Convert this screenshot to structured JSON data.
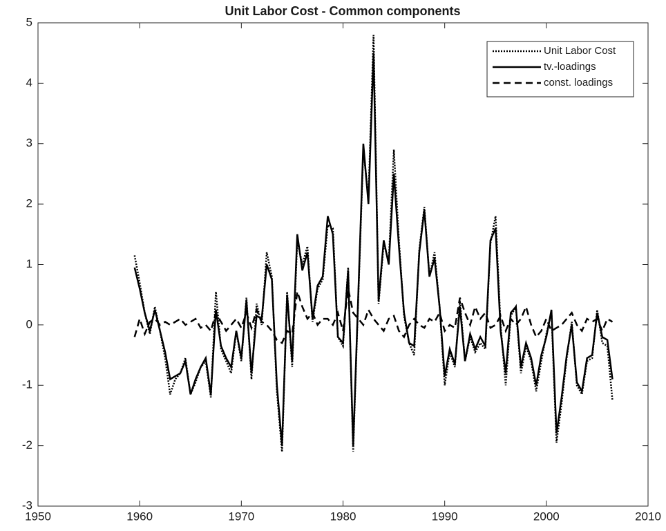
{
  "chart_data": {
    "type": "line",
    "title": "Unit Labor Cost - Common components",
    "x": [
      1959.5,
      1960,
      1960.5,
      1961,
      1961.5,
      1962,
      1962.5,
      1963,
      1963.5,
      1964,
      1964.5,
      1965,
      1965.5,
      1966,
      1966.5,
      1967,
      1967.5,
      1968,
      1968.5,
      1969,
      1969.5,
      1970,
      1970.5,
      1971,
      1971.5,
      1972,
      1972.5,
      1973,
      1973.5,
      1974,
      1974.5,
      1975,
      1975.5,
      1976,
      1976.5,
      1977,
      1977.5,
      1978,
      1978.5,
      1979,
      1979.5,
      1980,
      1980.5,
      1981,
      1981.5,
      1982,
      1982.5,
      1983,
      1983.5,
      1984,
      1984.5,
      1985,
      1985.5,
      1986,
      1986.5,
      1987,
      1987.5,
      1988,
      1988.5,
      1989,
      1989.5,
      1990,
      1990.5,
      1991,
      1991.5,
      1992,
      1992.5,
      1993,
      1993.5,
      1994,
      1994.5,
      1995,
      1995.5,
      1996,
      1996.5,
      1997,
      1997.5,
      1998,
      1998.5,
      1999,
      1999.5,
      2000,
      2000.5,
      2001,
      2001.5,
      2002,
      2002.5,
      2003,
      2003.5,
      2004,
      2004.5,
      2005,
      2005.5,
      2006,
      2006.5
    ],
    "series": [
      {
        "name": "Unit Labor Cost",
        "color": "#000000",
        "style": "dotted",
        "values": [
          1.15,
          0.7,
          0.2,
          -0.15,
          0.3,
          -0.1,
          -0.55,
          -1.15,
          -0.9,
          -0.8,
          -0.55,
          -1.15,
          -0.95,
          -0.7,
          -0.6,
          -1.2,
          0.55,
          -0.4,
          -0.6,
          -0.8,
          -0.1,
          -0.6,
          0.45,
          -0.9,
          0.35,
          0.0,
          1.2,
          0.8,
          -1.1,
          -2.1,
          0.55,
          -0.7,
          1.4,
          1.0,
          1.3,
          0.05,
          0.6,
          0.75,
          1.65,
          1.6,
          -0.2,
          -0.35,
          0.95,
          -2.1,
          0.45,
          2.9,
          2.1,
          4.8,
          0.35,
          1.35,
          1.05,
          2.9,
          1.4,
          0.15,
          -0.3,
          -0.5,
          1.25,
          1.95,
          0.8,
          1.2,
          0.3,
          -1.0,
          -0.45,
          -0.7,
          0.4,
          -0.6,
          -0.2,
          -0.45,
          -0.3,
          -0.4,
          1.35,
          1.8,
          0.0,
          -1.0,
          0.15,
          0.3,
          -0.8,
          -0.35,
          -0.6,
          -1.1,
          -0.6,
          -0.15,
          0.2,
          -1.95,
          -1.3,
          -0.55,
          0.05,
          -1.0,
          -1.15,
          -0.6,
          -0.55,
          0.25,
          -0.3,
          -0.35,
          -1.25
        ]
      },
      {
        "name": "tv.-loadings",
        "color": "#000000",
        "style": "solid",
        "values": [
          0.95,
          0.6,
          0.2,
          -0.1,
          0.25,
          -0.1,
          -0.45,
          -0.9,
          -0.85,
          -0.8,
          -0.6,
          -1.15,
          -0.9,
          -0.7,
          -0.55,
          -1.15,
          0.25,
          -0.35,
          -0.55,
          -0.7,
          -0.1,
          -0.55,
          0.4,
          -0.8,
          0.15,
          0.1,
          1.0,
          0.75,
          -1.0,
          -2.0,
          0.5,
          -0.6,
          1.5,
          0.9,
          1.2,
          0.1,
          0.65,
          0.8,
          1.8,
          1.5,
          -0.2,
          -0.3,
          0.9,
          -2.0,
          0.5,
          3.0,
          2.0,
          4.5,
          0.4,
          1.4,
          1.0,
          2.5,
          1.3,
          0.2,
          -0.3,
          -0.35,
          1.2,
          1.9,
          0.8,
          1.1,
          0.3,
          -0.85,
          -0.4,
          -0.65,
          0.3,
          -0.6,
          -0.15,
          -0.4,
          -0.2,
          -0.35,
          1.4,
          1.6,
          -0.1,
          -0.8,
          0.2,
          0.3,
          -0.7,
          -0.3,
          -0.55,
          -1.0,
          -0.5,
          -0.2,
          0.25,
          -1.8,
          -1.2,
          -0.5,
          0.0,
          -0.95,
          -1.1,
          -0.55,
          -0.5,
          0.2,
          -0.2,
          -0.25,
          -0.9
        ]
      },
      {
        "name": "const. loadings",
        "color": "#000000",
        "style": "dashed",
        "values": [
          -0.2,
          0.1,
          -0.15,
          0.05,
          0.1,
          0.0,
          0.05,
          0.0,
          0.05,
          0.1,
          0.0,
          0.05,
          0.1,
          -0.05,
          0.0,
          -0.1,
          0.2,
          0.05,
          -0.1,
          0.0,
          0.1,
          -0.05,
          0.2,
          -0.05,
          0.25,
          0.05,
          0.0,
          -0.1,
          -0.25,
          -0.3,
          -0.1,
          -0.15,
          0.55,
          0.3,
          0.1,
          0.2,
          0.0,
          0.1,
          0.1,
          0.0,
          0.2,
          -0.1,
          0.6,
          0.2,
          0.1,
          0.0,
          0.25,
          0.1,
          0.0,
          -0.1,
          0.1,
          0.15,
          -0.1,
          -0.2,
          0.0,
          0.1,
          0.0,
          -0.05,
          0.1,
          0.05,
          0.2,
          -0.1,
          0.0,
          -0.05,
          0.45,
          0.2,
          0.0,
          0.3,
          0.1,
          0.2,
          -0.05,
          0.0,
          0.15,
          -0.1,
          0.1,
          0.0,
          0.1,
          0.3,
          0.0,
          -0.2,
          -0.1,
          0.1,
          -0.1,
          -0.05,
          0.0,
          0.1,
          0.2,
          0.0,
          -0.1,
          0.1,
          0.05,
          0.1,
          -0.1,
          0.1,
          0.05
        ]
      }
    ],
    "xlim": [
      1950,
      2010
    ],
    "xticks": [
      1950,
      1960,
      1970,
      1980,
      1990,
      2000,
      2010
    ],
    "ylim": [
      -3,
      5
    ],
    "yticks": [
      -3,
      -2,
      -1,
      0,
      1,
      2,
      3,
      4,
      5
    ],
    "grid": false,
    "legend": "upper right"
  }
}
